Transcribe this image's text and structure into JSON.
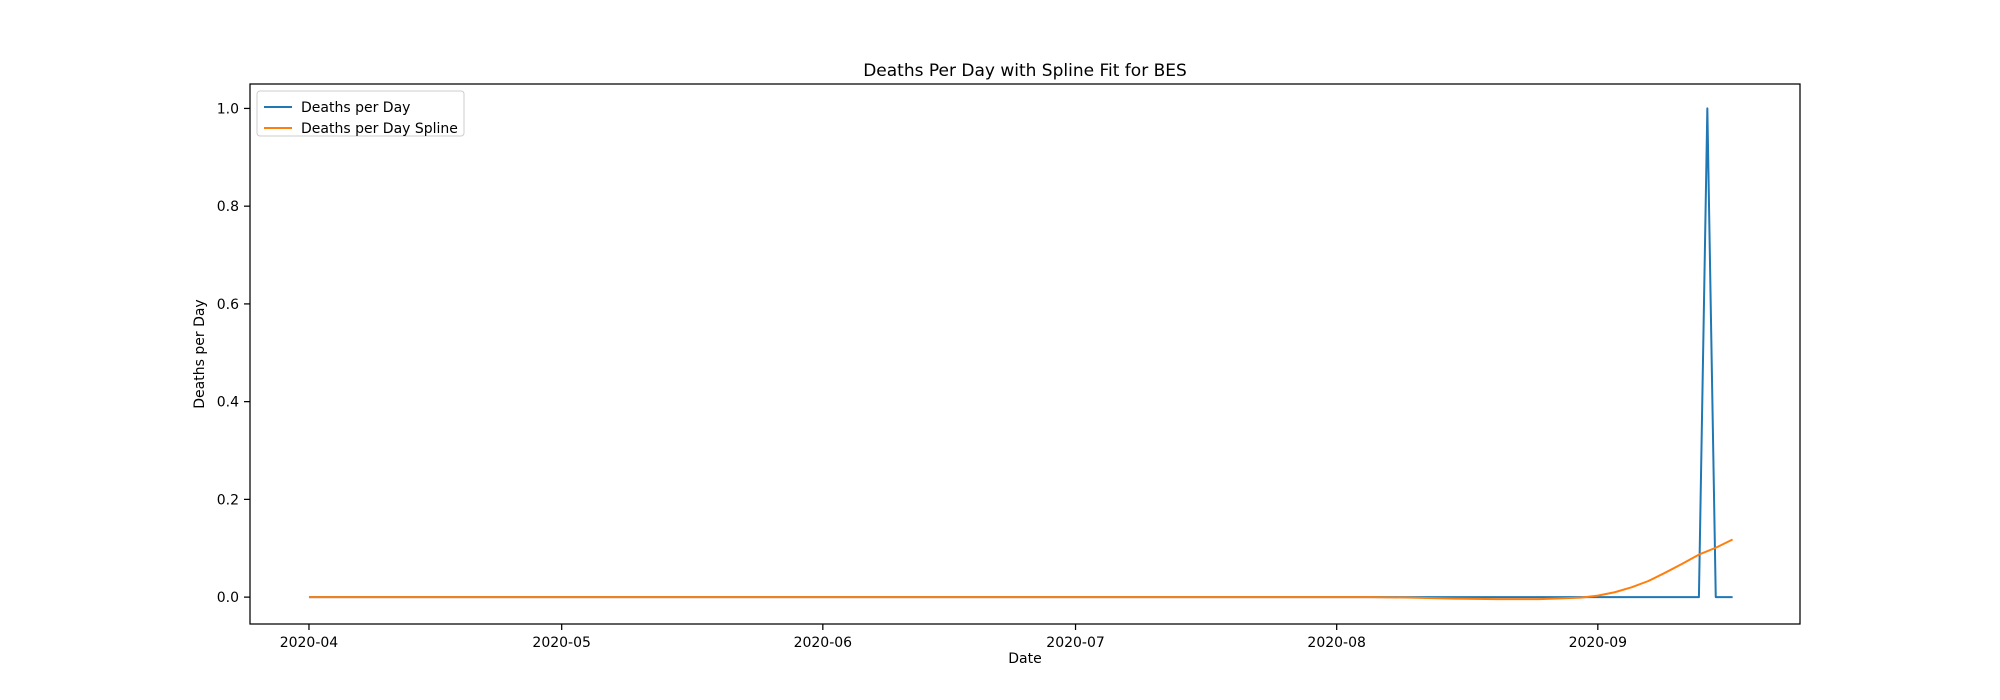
{
  "chart_data": {
    "type": "line",
    "title": "Deaths Per Day with Spline Fit for BES",
    "xlabel": "Date",
    "ylabel": "Deaths per Day",
    "x_axis_type": "date",
    "xlim": [
      "2020-03-25",
      "2020-09-25"
    ],
    "ylim": [
      -0.055,
      1.05
    ],
    "x_ticks": [
      "2020-04-01",
      "2020-05-01",
      "2020-06-01",
      "2020-07-01",
      "2020-08-01",
      "2020-09-01"
    ],
    "x_tick_labels": [
      "2020-04",
      "2020-05",
      "2020-06",
      "2020-07",
      "2020-08",
      "2020-09"
    ],
    "y_ticks": [
      0.0,
      0.2,
      0.4,
      0.6,
      0.8,
      1.0
    ],
    "y_tick_labels": [
      "0.0",
      "0.2",
      "0.4",
      "0.6",
      "0.8",
      "1.0"
    ],
    "grid": false,
    "legend_position": "top-left",
    "series": [
      {
        "name": "Deaths per Day",
        "color": "#1f77b4",
        "x": [
          "2020-04-01",
          "2020-09-13",
          "2020-09-14",
          "2020-09-15",
          "2020-09-17"
        ],
        "y": [
          0,
          0,
          1,
          0,
          0
        ]
      },
      {
        "name": "Deaths per Day Spline",
        "color": "#ff7f0e",
        "x": [
          "2020-04-01",
          "2020-08-05",
          "2020-08-10",
          "2020-08-15",
          "2020-08-20",
          "2020-08-25",
          "2020-08-30",
          "2020-09-01",
          "2020-09-03",
          "2020-09-05",
          "2020-09-07",
          "2020-09-09",
          "2020-09-11",
          "2020-09-13",
          "2020-09-15",
          "2020-09-17"
        ],
        "y": [
          0,
          0,
          -0.001,
          -0.003,
          -0.004,
          -0.004,
          -0.001,
          0.003,
          0.01,
          0.02,
          0.033,
          0.05,
          0.068,
          0.087,
          0.101,
          0.118
        ]
      }
    ]
  }
}
